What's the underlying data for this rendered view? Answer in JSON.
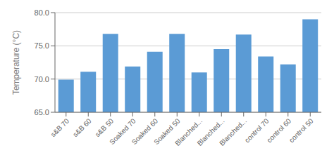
{
  "chart_data": {
    "type": "bar",
    "categories": [
      "s&B 70",
      "s&B 60",
      "s&B 50",
      "Soaked 70",
      "Soaked 60",
      "Soaked 50",
      "Blanched...",
      "Blanched...",
      "Blanched...",
      "control 70",
      "control 60",
      "control 50"
    ],
    "values": [
      69.9,
      71.1,
      76.8,
      71.9,
      74.1,
      76.8,
      71.0,
      74.5,
      76.7,
      73.4,
      72.2,
      79.0
    ],
    "color": "#5B9BD5",
    "ylabel": "Temperature (°C)",
    "ylim": [
      65.0,
      80.0
    ],
    "yticks": [
      {
        "value": 65.0,
        "label": "65.0"
      },
      {
        "value": 70.0,
        "label": "70.0"
      },
      {
        "value": 75.0,
        "label": "75.0"
      },
      {
        "value": 80.0,
        "label": "80.0"
      }
    ],
    "grid": true
  }
}
